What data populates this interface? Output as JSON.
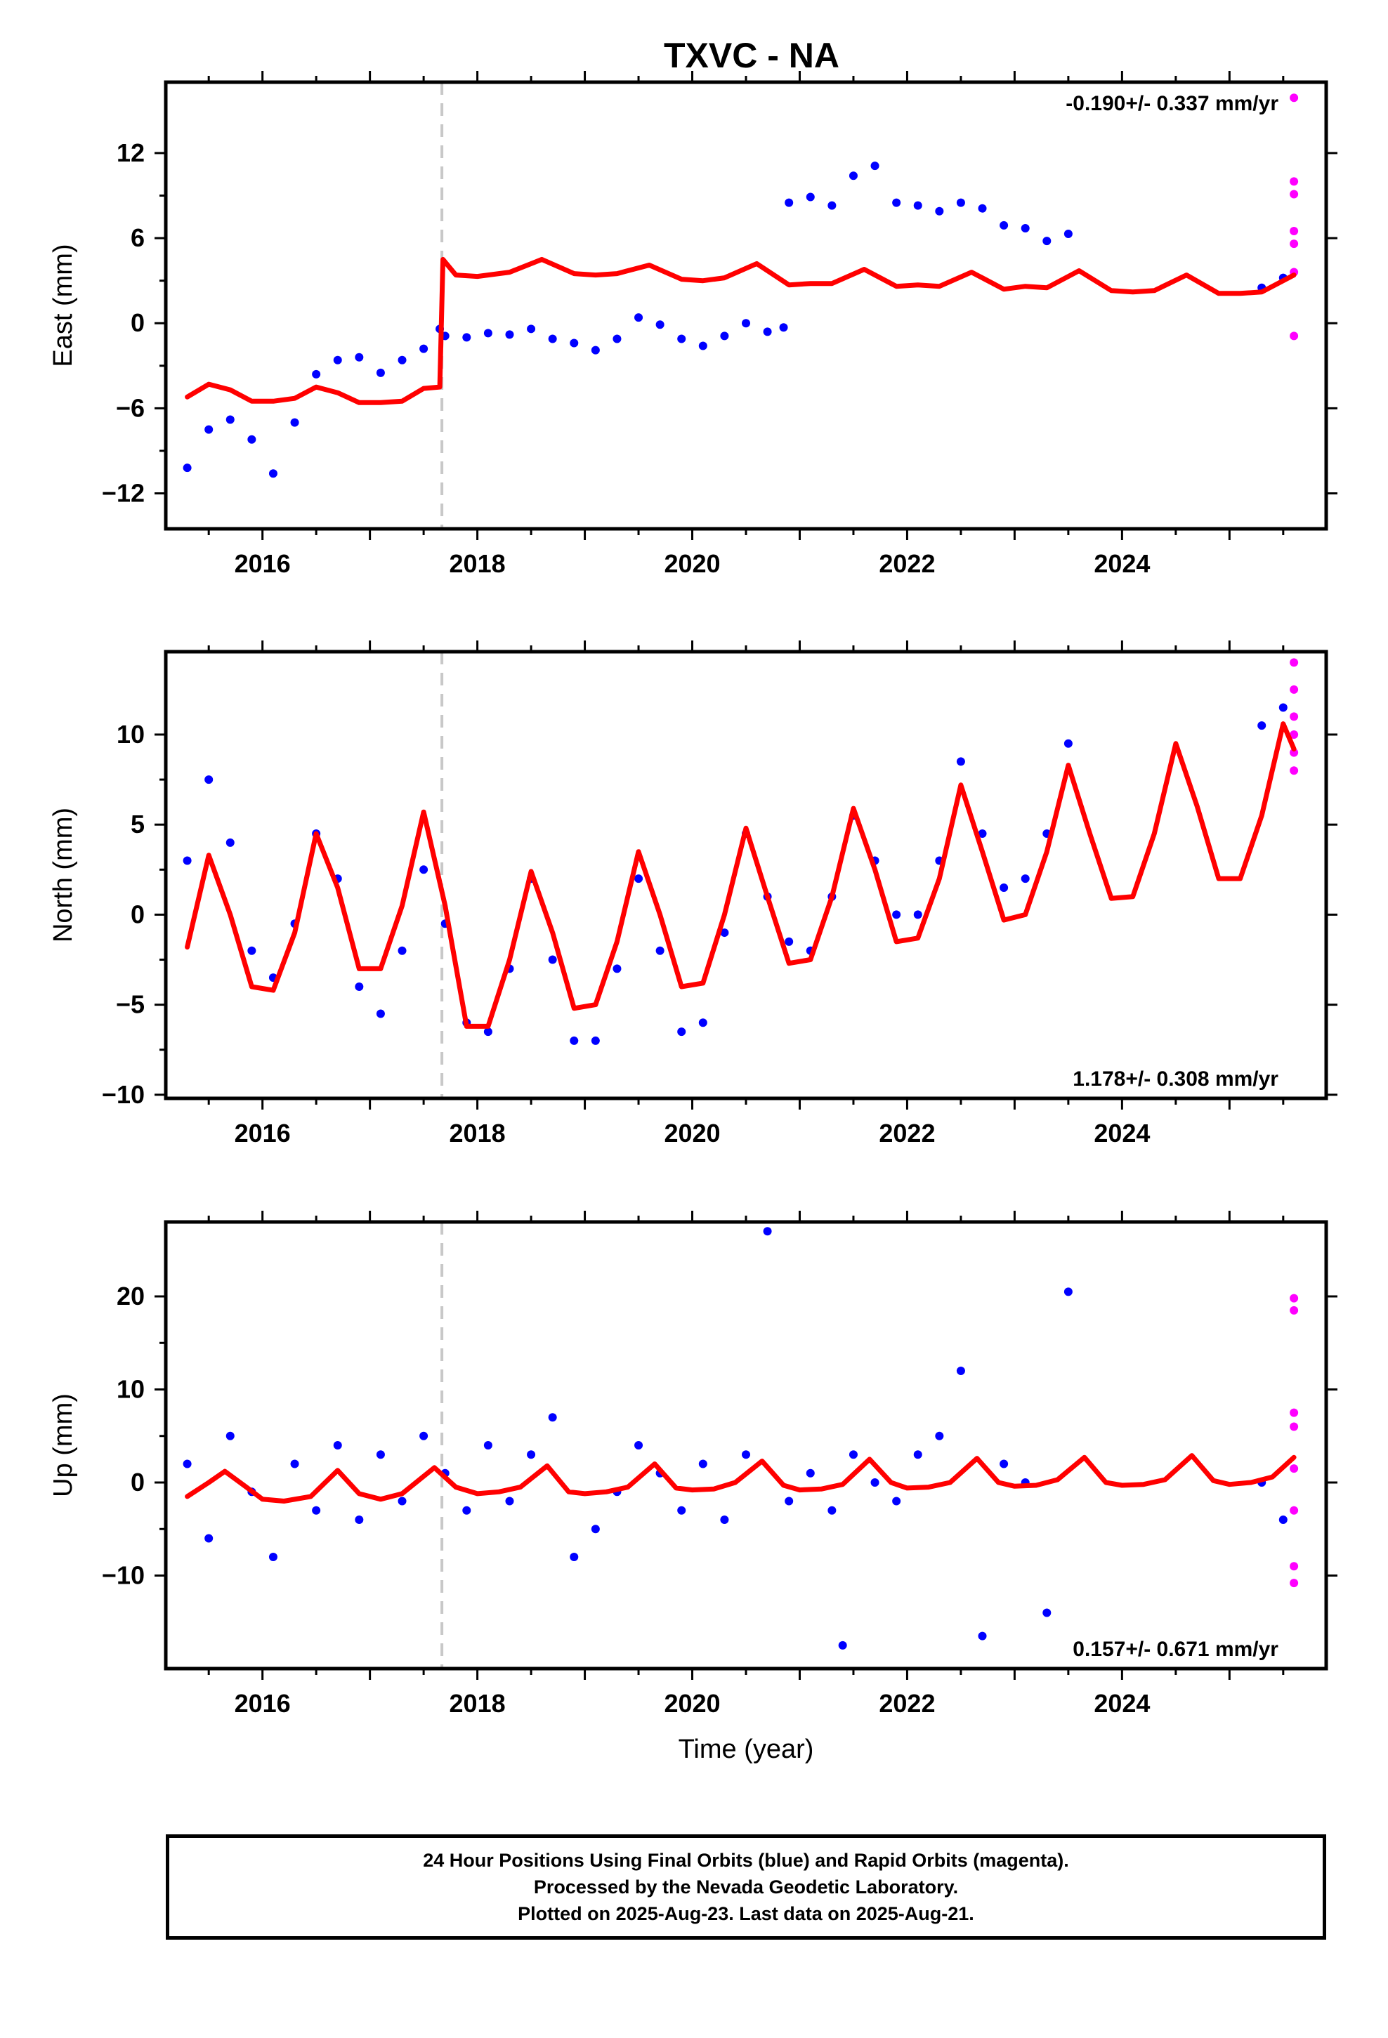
{
  "title": "TXVC - NA",
  "xlabel": "Time (year)",
  "footer": {
    "line1": "24 Hour Positions Using Final Orbits (blue) and Rapid Orbits (magenta).",
    "line2": "Processed by the Nevada Geodetic Laboratory.",
    "line3": "Plotted on 2025-Aug-23. Last data on 2025-Aug-21."
  },
  "colors": {
    "final": "#0000ff",
    "rapid": "#ff00ff",
    "model": "#ff0000",
    "event": "#c8c8c8"
  },
  "chart_data": [
    {
      "type": "scatter",
      "ylabel": "East (mm)",
      "rate_text": "-0.190+/- 0.337 mm/yr",
      "xlim": [
        2015.1,
        2025.9
      ],
      "ylim": [
        -14.5,
        17
      ],
      "xticks": [
        2016,
        2018,
        2020,
        2022,
        2024
      ],
      "yticks": [
        -12,
        -6,
        0,
        6,
        12
      ],
      "event_lines": [
        2017.67
      ],
      "final_orbit_series": [
        [
          2015.3,
          -10.2
        ],
        [
          2015.5,
          -7.5
        ],
        [
          2015.7,
          -6.8
        ],
        [
          2015.9,
          -8.2
        ],
        [
          2016.1,
          -10.6
        ],
        [
          2016.3,
          -7.0
        ],
        [
          2016.5,
          -3.6
        ],
        [
          2016.7,
          -2.6
        ],
        [
          2016.9,
          -2.4
        ],
        [
          2017.1,
          -3.5
        ],
        [
          2017.3,
          -2.6
        ],
        [
          2017.5,
          -1.8
        ],
        [
          2017.65,
          -0.4
        ],
        [
          2017.7,
          -0.9
        ],
        [
          2017.9,
          -1.0
        ],
        [
          2018.1,
          -0.7
        ],
        [
          2018.3,
          -0.8
        ],
        [
          2018.5,
          -0.4
        ],
        [
          2018.7,
          -1.1
        ],
        [
          2018.9,
          -1.4
        ],
        [
          2019.1,
          -1.9
        ],
        [
          2019.3,
          -1.1
        ],
        [
          2019.5,
          0.4
        ],
        [
          2019.7,
          -0.1
        ],
        [
          2019.9,
          -1.1
        ],
        [
          2020.1,
          -1.6
        ],
        [
          2020.3,
          -0.9
        ],
        [
          2020.5,
          0.0
        ],
        [
          2020.7,
          -0.6
        ],
        [
          2020.85,
          -0.3
        ],
        [
          2020.9,
          8.5
        ],
        [
          2021.1,
          8.9
        ],
        [
          2021.3,
          8.3
        ],
        [
          2021.5,
          10.4
        ],
        [
          2021.7,
          11.1
        ],
        [
          2021.9,
          8.5
        ],
        [
          2022.1,
          8.3
        ],
        [
          2022.3,
          7.9
        ],
        [
          2022.5,
          8.5
        ],
        [
          2022.7,
          8.1
        ],
        [
          2022.9,
          6.9
        ],
        [
          2023.1,
          6.7
        ],
        [
          2023.3,
          5.8
        ],
        [
          2023.5,
          6.3
        ],
        [
          2025.3,
          2.5
        ],
        [
          2025.5,
          3.2
        ]
      ],
      "rapid_orbit_series": [
        [
          2025.6,
          15.9
        ],
        [
          2025.6,
          10.0
        ],
        [
          2025.6,
          9.1
        ],
        [
          2025.6,
          6.5
        ],
        [
          2025.6,
          5.6
        ],
        [
          2025.6,
          3.6
        ],
        [
          2025.6,
          -0.9
        ]
      ],
      "model_series": [
        [
          2015.3,
          -5.2
        ],
        [
          2015.5,
          -4.3
        ],
        [
          2015.7,
          -4.7
        ],
        [
          2015.9,
          -5.5
        ],
        [
          2016.1,
          -5.5
        ],
        [
          2016.3,
          -5.3
        ],
        [
          2016.5,
          -4.5
        ],
        [
          2016.7,
          -4.9
        ],
        [
          2016.9,
          -5.6
        ],
        [
          2017.1,
          -5.6
        ],
        [
          2017.3,
          -5.5
        ],
        [
          2017.5,
          -4.6
        ],
        [
          2017.65,
          -4.5
        ],
        [
          2017.68,
          4.5
        ],
        [
          2017.8,
          3.4
        ],
        [
          2018.0,
          3.3
        ],
        [
          2018.3,
          3.6
        ],
        [
          2018.6,
          4.5
        ],
        [
          2018.9,
          3.5
        ],
        [
          2019.1,
          3.4
        ],
        [
          2019.3,
          3.5
        ],
        [
          2019.6,
          4.1
        ],
        [
          2019.9,
          3.1
        ],
        [
          2020.1,
          3.0
        ],
        [
          2020.3,
          3.2
        ],
        [
          2020.6,
          4.2
        ],
        [
          2020.9,
          2.7
        ],
        [
          2021.1,
          2.8
        ],
        [
          2021.3,
          2.8
        ],
        [
          2021.6,
          3.8
        ],
        [
          2021.9,
          2.6
        ],
        [
          2022.1,
          2.7
        ],
        [
          2022.3,
          2.6
        ],
        [
          2022.6,
          3.6
        ],
        [
          2022.9,
          2.4
        ],
        [
          2023.1,
          2.6
        ],
        [
          2023.3,
          2.5
        ],
        [
          2023.6,
          3.7
        ],
        [
          2023.9,
          2.3
        ],
        [
          2024.1,
          2.2
        ],
        [
          2024.3,
          2.3
        ],
        [
          2024.6,
          3.4
        ],
        [
          2024.9,
          2.1
        ],
        [
          2025.1,
          2.1
        ],
        [
          2025.3,
          2.2
        ],
        [
          2025.6,
          3.4
        ]
      ]
    },
    {
      "type": "scatter",
      "ylabel": "North (mm)",
      "rate_text": "1.178+/- 0.308 mm/yr",
      "xlim": [
        2015.1,
        2025.9
      ],
      "ylim": [
        -10.2,
        14.6
      ],
      "xticks": [
        2016,
        2018,
        2020,
        2022,
        2024
      ],
      "yticks": [
        -10,
        -5,
        0,
        5,
        10
      ],
      "event_lines": [
        2017.67
      ],
      "final_orbit_series": [
        [
          2015.3,
          3.0
        ],
        [
          2015.5,
          7.5
        ],
        [
          2015.7,
          4.0
        ],
        [
          2015.9,
          -2.0
        ],
        [
          2016.1,
          -3.5
        ],
        [
          2016.3,
          -0.5
        ],
        [
          2016.5,
          4.5
        ],
        [
          2016.7,
          2.0
        ],
        [
          2016.9,
          -4.0
        ],
        [
          2017.1,
          -5.5
        ],
        [
          2017.3,
          -2.0
        ],
        [
          2017.5,
          2.5
        ],
        [
          2017.7,
          -0.5
        ],
        [
          2017.9,
          -6.0
        ],
        [
          2018.1,
          -6.5
        ],
        [
          2018.3,
          -3.0
        ],
        [
          2018.5,
          2.0
        ],
        [
          2018.7,
          -2.5
        ],
        [
          2018.9,
          -7.0
        ],
        [
          2019.1,
          -7.0
        ],
        [
          2019.3,
          -3.0
        ],
        [
          2019.5,
          2.0
        ],
        [
          2019.7,
          -2.0
        ],
        [
          2019.9,
          -6.5
        ],
        [
          2020.1,
          -6.0
        ],
        [
          2020.3,
          -1.0
        ],
        [
          2020.5,
          4.5
        ],
        [
          2020.7,
          1.0
        ],
        [
          2020.9,
          -1.5
        ],
        [
          2021.1,
          -2.0
        ],
        [
          2021.3,
          1.0
        ],
        [
          2021.5,
          5.5
        ],
        [
          2021.7,
          3.0
        ],
        [
          2021.9,
          0.0
        ],
        [
          2022.1,
          0.0
        ],
        [
          2022.3,
          3.0
        ],
        [
          2022.5,
          8.5
        ],
        [
          2022.7,
          4.5
        ],
        [
          2022.9,
          1.5
        ],
        [
          2023.1,
          2.0
        ],
        [
          2023.3,
          4.5
        ],
        [
          2023.5,
          9.5
        ],
        [
          2025.3,
          10.5
        ],
        [
          2025.5,
          11.5
        ]
      ],
      "rapid_orbit_series": [
        [
          2025.6,
          14.0
        ],
        [
          2025.6,
          12.5
        ],
        [
          2025.6,
          11.0
        ],
        [
          2025.6,
          10.0
        ],
        [
          2025.6,
          9.0
        ],
        [
          2025.6,
          8.0
        ]
      ],
      "model_series": [
        [
          2015.3,
          -1.8
        ],
        [
          2015.5,
          3.3
        ],
        [
          2015.7,
          0.0
        ],
        [
          2015.9,
          -4.0
        ],
        [
          2016.1,
          -4.2
        ],
        [
          2016.3,
          -1.0
        ],
        [
          2016.5,
          4.5
        ],
        [
          2016.7,
          1.5
        ],
        [
          2016.9,
          -3.0
        ],
        [
          2017.1,
          -3.0
        ],
        [
          2017.3,
          0.5
        ],
        [
          2017.5,
          5.7
        ],
        [
          2017.7,
          0.5
        ],
        [
          2017.9,
          -6.2
        ],
        [
          2018.1,
          -6.2
        ],
        [
          2018.3,
          -2.5
        ],
        [
          2018.5,
          2.4
        ],
        [
          2018.7,
          -1.0
        ],
        [
          2018.9,
          -5.2
        ],
        [
          2019.1,
          -5.0
        ],
        [
          2019.3,
          -1.5
        ],
        [
          2019.5,
          3.5
        ],
        [
          2019.7,
          0.0
        ],
        [
          2019.9,
          -4.0
        ],
        [
          2020.1,
          -3.8
        ],
        [
          2020.3,
          0.0
        ],
        [
          2020.5,
          4.8
        ],
        [
          2020.7,
          1.0
        ],
        [
          2020.9,
          -2.7
        ],
        [
          2021.1,
          -2.5
        ],
        [
          2021.3,
          1.0
        ],
        [
          2021.5,
          5.9
        ],
        [
          2021.7,
          2.5
        ],
        [
          2021.9,
          -1.5
        ],
        [
          2022.1,
          -1.3
        ],
        [
          2022.3,
          2.0
        ],
        [
          2022.5,
          7.2
        ],
        [
          2022.7,
          3.5
        ],
        [
          2022.9,
          -0.3
        ],
        [
          2023.1,
          0.0
        ],
        [
          2023.3,
          3.5
        ],
        [
          2023.5,
          8.3
        ],
        [
          2023.7,
          4.5
        ],
        [
          2023.9,
          0.9
        ],
        [
          2024.1,
          1.0
        ],
        [
          2024.3,
          4.5
        ],
        [
          2024.5,
          9.5
        ],
        [
          2024.7,
          6.0
        ],
        [
          2024.9,
          2.0
        ],
        [
          2025.1,
          2.0
        ],
        [
          2025.3,
          5.5
        ],
        [
          2025.5,
          10.6
        ],
        [
          2025.6,
          9.2
        ]
      ]
    },
    {
      "type": "scatter",
      "ylabel": "Up (mm)",
      "rate_text": "0.157+/- 0.671 mm/yr",
      "xlim": [
        2015.1,
        2025.9
      ],
      "ylim": [
        -20,
        28
      ],
      "xticks": [
        2016,
        2018,
        2020,
        2022,
        2024
      ],
      "yticks": [
        -10,
        0,
        10,
        20
      ],
      "event_lines": [
        2017.67
      ],
      "final_orbit_series": [
        [
          2015.3,
          2.0
        ],
        [
          2015.5,
          -6.0
        ],
        [
          2015.7,
          5.0
        ],
        [
          2015.9,
          -1.0
        ],
        [
          2016.1,
          -8.0
        ],
        [
          2016.3,
          2.0
        ],
        [
          2016.5,
          -3.0
        ],
        [
          2016.7,
          4.0
        ],
        [
          2016.9,
          -4.0
        ],
        [
          2017.1,
          3.0
        ],
        [
          2017.3,
          -2.0
        ],
        [
          2017.5,
          5.0
        ],
        [
          2017.7,
          1.0
        ],
        [
          2017.9,
          -3.0
        ],
        [
          2018.1,
          4.0
        ],
        [
          2018.3,
          -2.0
        ],
        [
          2018.5,
          3.0
        ],
        [
          2018.7,
          7.0
        ],
        [
          2018.9,
          -8.0
        ],
        [
          2019.1,
          -5.0
        ],
        [
          2019.3,
          -1.0
        ],
        [
          2019.5,
          4.0
        ],
        [
          2019.7,
          1.0
        ],
        [
          2019.9,
          -3.0
        ],
        [
          2020.1,
          2.0
        ],
        [
          2020.3,
          -4.0
        ],
        [
          2020.5,
          3.0
        ],
        [
          2020.7,
          27.0
        ],
        [
          2020.9,
          -2.0
        ],
        [
          2021.1,
          1.0
        ],
        [
          2021.3,
          -3.0
        ],
        [
          2021.4,
          -17.5
        ],
        [
          2021.5,
          3.0
        ],
        [
          2021.7,
          0.0
        ],
        [
          2021.9,
          -2.0
        ],
        [
          2022.1,
          3.0
        ],
        [
          2022.3,
          5.0
        ],
        [
          2022.5,
          12.0
        ],
        [
          2022.7,
          -16.5
        ],
        [
          2022.9,
          2.0
        ],
        [
          2023.1,
          0.0
        ],
        [
          2023.3,
          -14.0
        ],
        [
          2023.5,
          20.5
        ],
        [
          2025.3,
          0.0
        ],
        [
          2025.5,
          -4.0
        ]
      ],
      "rapid_orbit_series": [
        [
          2025.6,
          19.8
        ],
        [
          2025.6,
          18.5
        ],
        [
          2025.6,
          7.5
        ],
        [
          2025.6,
          6.0
        ],
        [
          2025.6,
          1.5
        ],
        [
          2025.6,
          -3.0
        ],
        [
          2025.6,
          -9.0
        ],
        [
          2025.6,
          -10.8
        ]
      ],
      "model_series": [
        [
          2015.3,
          -1.5
        ],
        [
          2015.5,
          0.0
        ],
        [
          2015.65,
          1.2
        ],
        [
          2015.85,
          -0.5
        ],
        [
          2016.0,
          -1.8
        ],
        [
          2016.2,
          -2.0
        ],
        [
          2016.45,
          -1.5
        ],
        [
          2016.7,
          1.3
        ],
        [
          2016.9,
          -1.2
        ],
        [
          2017.1,
          -1.8
        ],
        [
          2017.3,
          -1.2
        ],
        [
          2017.6,
          1.6
        ],
        [
          2017.8,
          -0.5
        ],
        [
          2018.0,
          -1.2
        ],
        [
          2018.2,
          -1.0
        ],
        [
          2018.4,
          -0.5
        ],
        [
          2018.65,
          1.8
        ],
        [
          2018.85,
          -1.0
        ],
        [
          2019.0,
          -1.2
        ],
        [
          2019.2,
          -1.0
        ],
        [
          2019.4,
          -0.5
        ],
        [
          2019.65,
          2.0
        ],
        [
          2019.85,
          -0.6
        ],
        [
          2020.0,
          -0.8
        ],
        [
          2020.2,
          -0.7
        ],
        [
          2020.4,
          0.0
        ],
        [
          2020.65,
          2.3
        ],
        [
          2020.85,
          -0.3
        ],
        [
          2021.0,
          -0.8
        ],
        [
          2021.2,
          -0.7
        ],
        [
          2021.4,
          -0.2
        ],
        [
          2021.65,
          2.5
        ],
        [
          2021.85,
          0.0
        ],
        [
          2022.0,
          -0.6
        ],
        [
          2022.2,
          -0.5
        ],
        [
          2022.4,
          0.0
        ],
        [
          2022.65,
          2.6
        ],
        [
          2022.85,
          0.0
        ],
        [
          2023.0,
          -0.4
        ],
        [
          2023.2,
          -0.3
        ],
        [
          2023.4,
          0.3
        ],
        [
          2023.65,
          2.7
        ],
        [
          2023.85,
          0.0
        ],
        [
          2024.0,
          -0.3
        ],
        [
          2024.2,
          -0.2
        ],
        [
          2024.4,
          0.3
        ],
        [
          2024.65,
          2.9
        ],
        [
          2024.85,
          0.2
        ],
        [
          2025.0,
          -0.2
        ],
        [
          2025.2,
          0.0
        ],
        [
          2025.4,
          0.6
        ],
        [
          2025.6,
          2.7
        ]
      ]
    }
  ]
}
